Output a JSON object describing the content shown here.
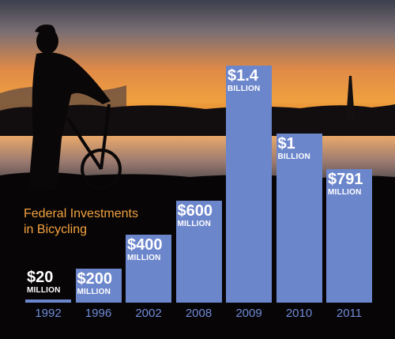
{
  "chart_data": {
    "type": "bar",
    "title": "Federal Investments in Bicycling",
    "title_lines": [
      "Federal Investments",
      "in Bicycling"
    ],
    "categories": [
      "1992",
      "1996",
      "2002",
      "2008",
      "2009",
      "2010",
      "2011"
    ],
    "values": [
      20,
      200,
      400,
      600,
      1400,
      1000,
      791
    ],
    "unit": "million USD",
    "value_labels": [
      {
        "amount": "$20",
        "unit": "MILLION"
      },
      {
        "amount": "$200",
        "unit": "MILLION"
      },
      {
        "amount": "$400",
        "unit": "MILLION"
      },
      {
        "amount": "$600",
        "unit": "MILLION"
      },
      {
        "amount": "$1.4",
        "unit": "BILLION"
      },
      {
        "amount": "$1",
        "unit": "BILLION"
      },
      {
        "amount": "$791",
        "unit": "MILLION"
      }
    ],
    "bar_color": "#6c86cc",
    "title_color": "#f3a23f",
    "year_color": "#6f8bd8",
    "ylim": [
      0,
      1400
    ],
    "grid": false,
    "legend": "none"
  }
}
